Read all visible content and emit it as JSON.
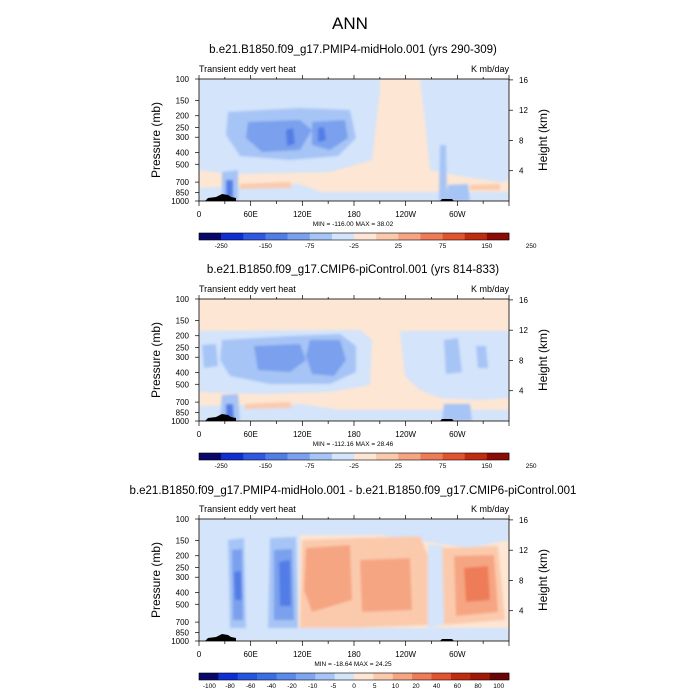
{
  "figure_title": "ANN",
  "panels": [
    {
      "title": "b.e21.B1850.f09_g17.PMIP4-midHolo.001 (yrs 290-309)",
      "left_label": "Transient eddy vert heat",
      "right_label": "K mb/day",
      "ylabel": "Pressure (mb)",
      "y2label": "Height (km)",
      "minmax": "MIN = -116.00  MAX = 38.02",
      "colorbar_labels": [
        "-250",
        "-150",
        "-75",
        "-25",
        "25",
        "75",
        "150",
        "250"
      ]
    },
    {
      "title": "b.e21.B1850.f09_g17.CMIP6-piControl.001 (yrs 814-833)",
      "left_label": "Transient eddy vert heat",
      "right_label": "K mb/day",
      "ylabel": "Pressure (mb)",
      "y2label": "Height (km)",
      "minmax": "MIN = -112.16  MAX = 28.46",
      "colorbar_labels": [
        "-250",
        "-150",
        "-75",
        "-25",
        "25",
        "75",
        "150",
        "250"
      ]
    },
    {
      "title": "b.e21.B1850.f09_g17.PMIP4-midHolo.001 - b.e21.B1850.f09_g17.CMIP6-piControl.001",
      "left_label": "Transient eddy vert heat",
      "right_label": "K mb/day",
      "ylabel": "Pressure (mb)",
      "y2label": "Height (km)",
      "minmax": "MIN = -18.64  MAX = 24.25",
      "colorbar_labels": [
        "-100",
        "-80",
        "-60",
        "-40",
        "-20",
        "-10",
        "-5",
        "0",
        "5",
        "10",
        "20",
        "40",
        "60",
        "80",
        "100"
      ]
    }
  ],
  "colors": {
    "scale_abs": [
      "#08086b",
      "#0f2fd0",
      "#2f58e0",
      "#527de6",
      "#7aa0ee",
      "#a6c4f5",
      "#d3e4fb",
      "#fde6d4",
      "#fbcaad",
      "#f6a582",
      "#ee7c58",
      "#e0542f",
      "#c02c10",
      "#8a0c05"
    ],
    "scale_diff": [
      "#08086b",
      "#0f2fd0",
      "#2456dd",
      "#3b6ee4",
      "#5a8aea",
      "#7ea6f0",
      "#a6c4f5",
      "#d3e4fb",
      "#fde6d4",
      "#fbcaad",
      "#f6a582",
      "#ee7c58",
      "#e0542f",
      "#c02c10",
      "#a01808",
      "#6b0404"
    ]
  },
  "chart_data": [
    {
      "type": "heatmap",
      "title": "b.e21.B1850.f09_g17.PMIP4-midHolo.001 (yrs 290-309)",
      "units": "K mb/day",
      "xlabel": "",
      "ylabel": "Pressure (mb)",
      "y2label": "Height (km)",
      "x_ticks": [
        "0",
        "60E",
        "120E",
        "180",
        "120W",
        "60W"
      ],
      "y_ticks": [
        100,
        150,
        200,
        250,
        300,
        400,
        500,
        700,
        850,
        1000
      ],
      "y2_ticks": [
        16,
        12,
        8,
        4
      ],
      "contour_levels": [
        -250,
        -150,
        -75,
        -25,
        25,
        75,
        150,
        250
      ],
      "min": -116.0,
      "max": 38.02
    },
    {
      "type": "heatmap",
      "title": "b.e21.B1850.f09_g17.CMIP6-piControl.001 (yrs 814-833)",
      "units": "K mb/day",
      "xlabel": "",
      "ylabel": "Pressure (mb)",
      "y2label": "Height (km)",
      "x_ticks": [
        "0",
        "60E",
        "120E",
        "180",
        "120W",
        "60W"
      ],
      "y_ticks": [
        100,
        150,
        200,
        250,
        300,
        400,
        500,
        700,
        850,
        1000
      ],
      "y2_ticks": [
        16,
        12,
        8,
        4
      ],
      "contour_levels": [
        -250,
        -150,
        -75,
        -25,
        25,
        75,
        150,
        250
      ],
      "min": -112.16,
      "max": 28.46
    },
    {
      "type": "heatmap",
      "title": "b.e21.B1850.f09_g17.PMIP4-midHolo.001 - b.e21.B1850.f09_g17.CMIP6-piControl.001",
      "units": "K mb/day",
      "xlabel": "",
      "ylabel": "Pressure (mb)",
      "y2label": "Height (km)",
      "x_ticks": [
        "0",
        "60E",
        "120E",
        "180",
        "120W",
        "60W"
      ],
      "y_ticks": [
        100,
        150,
        200,
        250,
        300,
        400,
        500,
        700,
        850,
        1000
      ],
      "y2_ticks": [
        16,
        12,
        8,
        4
      ],
      "contour_levels": [
        -100,
        -80,
        -60,
        -40,
        -20,
        -10,
        -5,
        0,
        5,
        10,
        20,
        40,
        60,
        80,
        100
      ],
      "min": -18.64,
      "max": 24.25
    }
  ]
}
